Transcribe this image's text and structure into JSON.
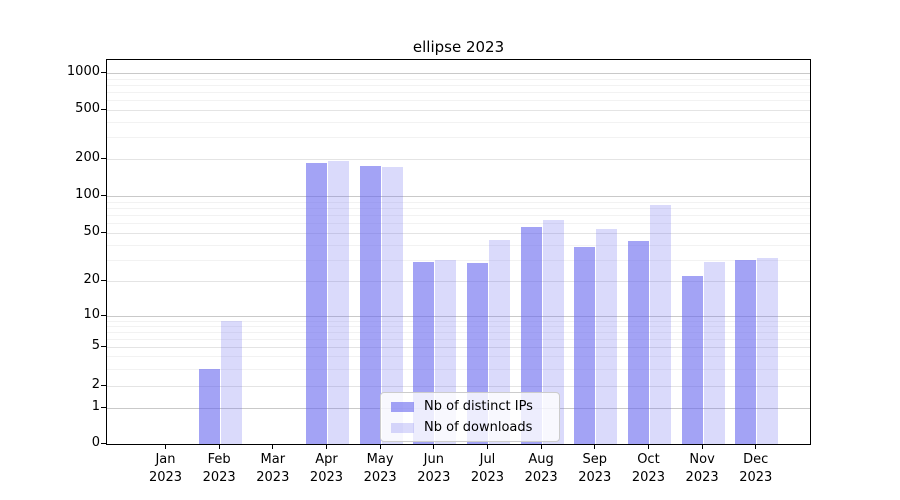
{
  "title": "ellipse 2023",
  "legend": {
    "items": [
      {
        "label": "Nb of distinct IPs",
        "color": "rgba(102,102,238,0.6)"
      },
      {
        "label": "Nb of downloads",
        "color": "rgba(102,102,238,0.24)"
      }
    ],
    "position": "lower center"
  },
  "chart_data": {
    "type": "bar",
    "title": "ellipse 2023",
    "categories": [
      "Jan 2023",
      "Feb 2023",
      "Mar 2023",
      "Apr 2023",
      "May 2023",
      "Jun 2023",
      "Jul 2023",
      "Aug 2023",
      "Sep 2023",
      "Oct 2023",
      "Nov 2023",
      "Dec 2023"
    ],
    "series": [
      {
        "name": "Nb of distinct IPs",
        "color": "rgba(102,102,238,0.6)",
        "values": [
          0,
          3,
          0,
          185,
          174,
          29,
          28,
          56,
          38,
          43,
          22,
          30
        ]
      },
      {
        "name": "Nb of downloads",
        "color": "rgba(102,102,238,0.24)",
        "values": [
          0,
          9,
          0,
          193,
          172,
          30,
          44,
          64,
          54,
          85,
          29,
          31
        ]
      }
    ],
    "y_axis": {
      "scale": "symlog",
      "ticks": [
        0,
        1,
        2,
        5,
        10,
        20,
        50,
        100,
        200,
        500,
        1000
      ],
      "tick_labels": [
        "0",
        "1",
        "2",
        "5",
        "10",
        "20",
        "50",
        "100",
        "200",
        "500",
        "1000"
      ],
      "major_ticks": [
        1,
        10,
        100,
        1000
      ],
      "labeled_minor_ticks": [
        2,
        5,
        20,
        50,
        200,
        500
      ],
      "minor_gridlines": [
        3,
        4,
        6,
        7,
        8,
        9,
        30,
        40,
        60,
        70,
        80,
        90,
        300,
        400,
        600,
        700,
        800,
        900
      ],
      "range": [
        0,
        1000
      ]
    },
    "x_axis": {
      "year_line": "2023"
    },
    "grid": true,
    "legend_position": "lower center"
  },
  "colors": {
    "axis": "#000000",
    "grid_major": "#c9c9c9",
    "grid_mid": "#e4e4e4",
    "grid_faint": "#f2f2f2",
    "legend_bg": "rgba(255,255,255,0.8)",
    "legend_border": "#cccccc",
    "background": "#ffffff"
  }
}
